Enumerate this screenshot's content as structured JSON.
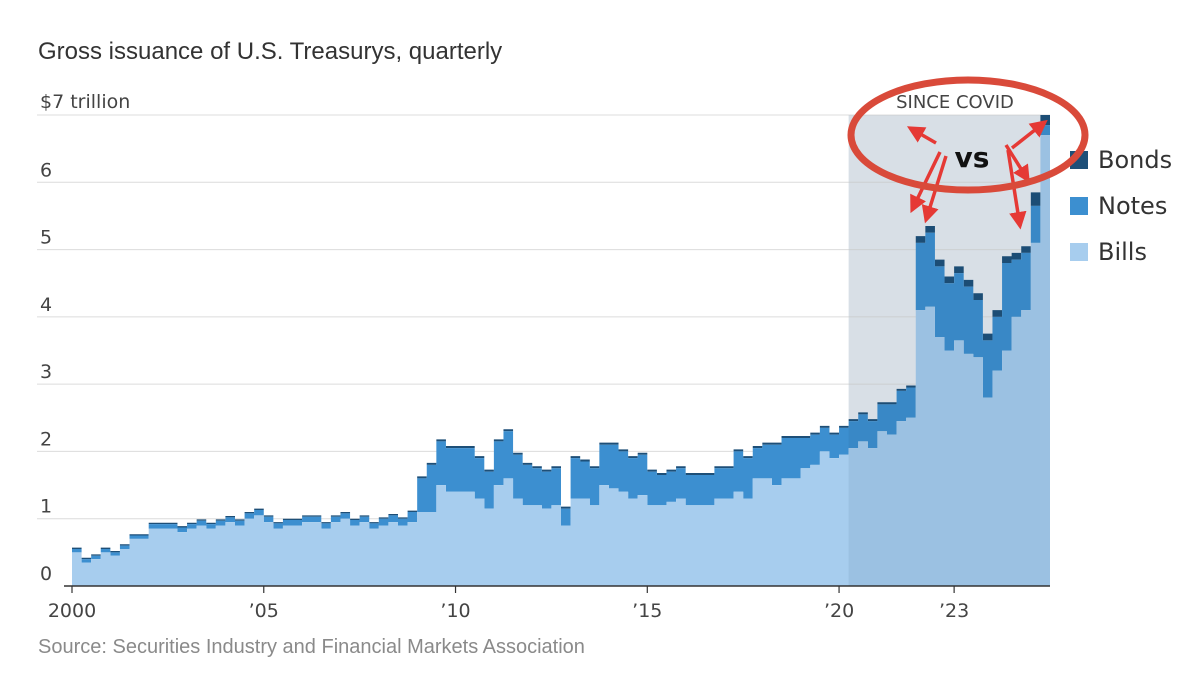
{
  "chart_data": {
    "type": "area",
    "title": "Gross issuance of U.S. Treasurys, quarterly",
    "y_unit_label": "$7 trillion",
    "ylim": [
      0,
      7
    ],
    "y_ticks": [
      {
        "value": 0,
        "label": "0"
      },
      {
        "value": 1,
        "label": "1"
      },
      {
        "value": 2,
        "label": "2"
      },
      {
        "value": 3,
        "label": "3"
      },
      {
        "value": 4,
        "label": "4"
      },
      {
        "value": 5,
        "label": "5"
      },
      {
        "value": 6,
        "label": "6"
      },
      {
        "value": 7,
        "label": ""
      }
    ],
    "x_ticks": [
      {
        "value": 2000,
        "label": "2000"
      },
      {
        "value": 2005,
        "label": "’05"
      },
      {
        "value": 2010,
        "label": "’10"
      },
      {
        "value": 2015,
        "label": "’15"
      },
      {
        "value": 2020,
        "label": "’20"
      },
      {
        "value": 2023,
        "label": "’23"
      }
    ],
    "quarters_start": 2000.0,
    "highlight_start": 2020.25,
    "highlight_label": "SINCE COVID",
    "annotation_text": "vs",
    "legend": [
      {
        "name": "Bonds",
        "color": "#1d4f78"
      },
      {
        "name": "Notes",
        "color": "#3c8fd0"
      },
      {
        "name": "Bills",
        "color": "#a7cdee"
      }
    ],
    "legend_position": "right",
    "grid": true,
    "highlight_color": "#e9edf2",
    "annotation_color": "#e53935",
    "circle_color": "#d94a3a",
    "bills": [
      0.5,
      0.35,
      0.4,
      0.5,
      0.45,
      0.55,
      0.7,
      0.7,
      0.85,
      0.85,
      0.85,
      0.8,
      0.85,
      0.9,
      0.85,
      0.9,
      0.95,
      0.9,
      1.0,
      1.05,
      0.95,
      0.85,
      0.9,
      0.9,
      0.95,
      0.95,
      0.85,
      0.95,
      1.0,
      0.9,
      0.95,
      0.85,
      0.9,
      0.95,
      0.9,
      0.95,
      1.1,
      1.1,
      1.5,
      1.4,
      1.4,
      1.4,
      1.3,
      1.15,
      1.5,
      1.6,
      1.3,
      1.2,
      1.2,
      1.15,
      1.2,
      0.9,
      1.3,
      1.3,
      1.2,
      1.5,
      1.45,
      1.4,
      1.3,
      1.35,
      1.2,
      1.2,
      1.25,
      1.3,
      1.2,
      1.2,
      1.2,
      1.3,
      1.3,
      1.4,
      1.3,
      1.6,
      1.6,
      1.5,
      1.6,
      1.6,
      1.75,
      1.8,
      2.0,
      1.9,
      1.95,
      2.05,
      2.15,
      2.05,
      2.3,
      2.25,
      2.45,
      2.5,
      4.1,
      4.15,
      3.7,
      3.5,
      3.65,
      3.45,
      3.4,
      2.8,
      3.2,
      3.5,
      4.0,
      4.1,
      5.1,
      6.7
    ],
    "notes": [
      0.05,
      0.05,
      0.05,
      0.05,
      0.05,
      0.05,
      0.05,
      0.05,
      0.07,
      0.07,
      0.07,
      0.07,
      0.07,
      0.07,
      0.07,
      0.07,
      0.07,
      0.07,
      0.08,
      0.08,
      0.08,
      0.08,
      0.08,
      0.08,
      0.08,
      0.08,
      0.08,
      0.08,
      0.08,
      0.08,
      0.08,
      0.08,
      0.1,
      0.1,
      0.1,
      0.15,
      0.5,
      0.7,
      0.65,
      0.65,
      0.65,
      0.65,
      0.6,
      0.55,
      0.65,
      0.7,
      0.65,
      0.6,
      0.55,
      0.55,
      0.55,
      0.25,
      0.6,
      0.55,
      0.55,
      0.6,
      0.65,
      0.6,
      0.6,
      0.6,
      0.5,
      0.45,
      0.45,
      0.45,
      0.45,
      0.45,
      0.45,
      0.45,
      0.45,
      0.6,
      0.6,
      0.45,
      0.5,
      0.6,
      0.6,
      0.6,
      0.45,
      0.45,
      0.35,
      0.35,
      0.4,
      0.4,
      0.4,
      0.4,
      0.4,
      0.45,
      0.45,
      0.45,
      1.0,
      1.1,
      1.05,
      1.0,
      1.0,
      1.0,
      0.85,
      0.85,
      0.8,
      1.3,
      0.85,
      0.85,
      0.55,
      0.15
    ],
    "bonds": [
      0.02,
      0.02,
      0.02,
      0.02,
      0.02,
      0.02,
      0.02,
      0.02,
      0.02,
      0.02,
      0.02,
      0.02,
      0.02,
      0.02,
      0.02,
      0.02,
      0.02,
      0.02,
      0.02,
      0.02,
      0.02,
      0.02,
      0.02,
      0.02,
      0.02,
      0.02,
      0.02,
      0.02,
      0.02,
      0.02,
      0.02,
      0.02,
      0.02,
      0.02,
      0.02,
      0.02,
      0.03,
      0.03,
      0.03,
      0.03,
      0.03,
      0.03,
      0.03,
      0.03,
      0.03,
      0.03,
      0.03,
      0.03,
      0.03,
      0.03,
      0.03,
      0.03,
      0.03,
      0.03,
      0.03,
      0.03,
      0.03,
      0.03,
      0.03,
      0.03,
      0.03,
      0.03,
      0.03,
      0.03,
      0.03,
      0.03,
      0.03,
      0.03,
      0.03,
      0.03,
      0.03,
      0.03,
      0.03,
      0.03,
      0.03,
      0.03,
      0.03,
      0.03,
      0.03,
      0.03,
      0.03,
      0.03,
      0.03,
      0.03,
      0.03,
      0.03,
      0.03,
      0.03,
      0.1,
      0.1,
      0.1,
      0.1,
      0.1,
      0.1,
      0.1,
      0.1,
      0.1,
      0.1,
      0.1,
      0.1,
      0.2,
      0.15
    ]
  }
}
